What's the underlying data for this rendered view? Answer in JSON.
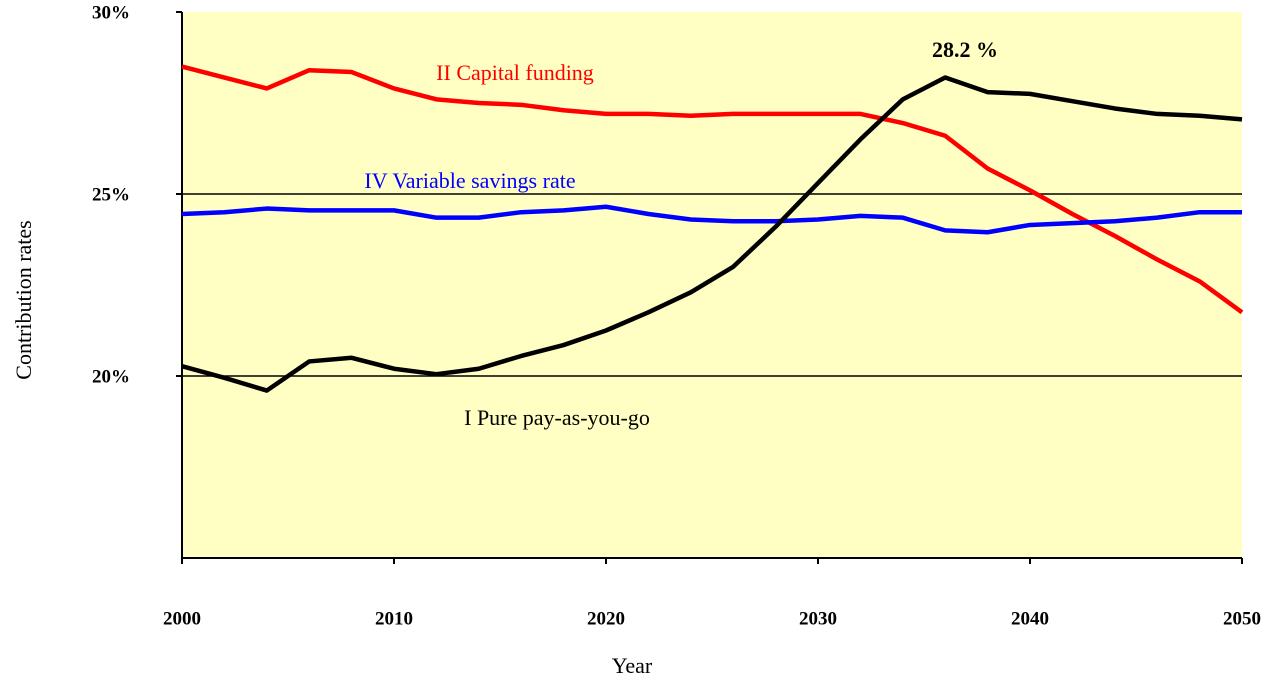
{
  "chart_data": {
    "type": "line",
    "x_label": "Year",
    "y_label": "Contribution rates",
    "annotations": [
      "28.2 %"
    ],
    "x": [
      2000,
      2002,
      2004,
      2006,
      2008,
      2010,
      2012,
      2014,
      2016,
      2018,
      2020,
      2022,
      2024,
      2026,
      2028,
      2030,
      2032,
      2034,
      2036,
      2038,
      2040,
      2042,
      2044,
      2046,
      2048,
      2050
    ],
    "series": [
      {
        "name": "II Capital funding",
        "color": "#ff0000",
        "values": [
          28.5,
          28.2,
          27.9,
          28.4,
          28.35,
          27.9,
          27.6,
          27.5,
          27.45,
          27.3,
          27.2,
          27.2,
          27.15,
          27.2,
          27.2,
          27.2,
          27.2,
          26.95,
          26.6,
          25.7,
          25.1,
          24.45,
          23.85,
          23.2,
          22.6,
          21.75
        ]
      },
      {
        "name": "IV Variable savings rate",
        "color": "#0000ff",
        "values": [
          24.45,
          24.5,
          24.6,
          24.55,
          24.55,
          24.55,
          24.35,
          24.35,
          24.5,
          24.55,
          24.65,
          24.45,
          24.3,
          24.25,
          24.25,
          24.3,
          24.4,
          24.35,
          24.0,
          23.95,
          24.15,
          24.2,
          24.25,
          24.35,
          24.5,
          24.5
        ]
      },
      {
        "name": "I Pure pay-as-you-go",
        "color": "#000000",
        "values": [
          20.27,
          19.95,
          19.6,
          20.4,
          20.5,
          20.2,
          20.05,
          20.2,
          20.55,
          20.85,
          21.25,
          21.75,
          22.3,
          23.0,
          24.1,
          25.3,
          26.5,
          27.6,
          28.2,
          27.8,
          27.75,
          27.55,
          27.35,
          27.2,
          27.15,
          27.05
        ]
      }
    ],
    "xlim": [
      2000,
      2050
    ],
    "xticks": [
      2000,
      2010,
      2020,
      2030,
      2040,
      2050
    ],
    "ylim": [
      15,
      30
    ],
    "yticks": [
      {
        "value": 20,
        "label": "20%"
      },
      {
        "value": 25,
        "label": "25%"
      },
      {
        "value": 30,
        "label": "30%"
      }
    ],
    "grid": true
  }
}
